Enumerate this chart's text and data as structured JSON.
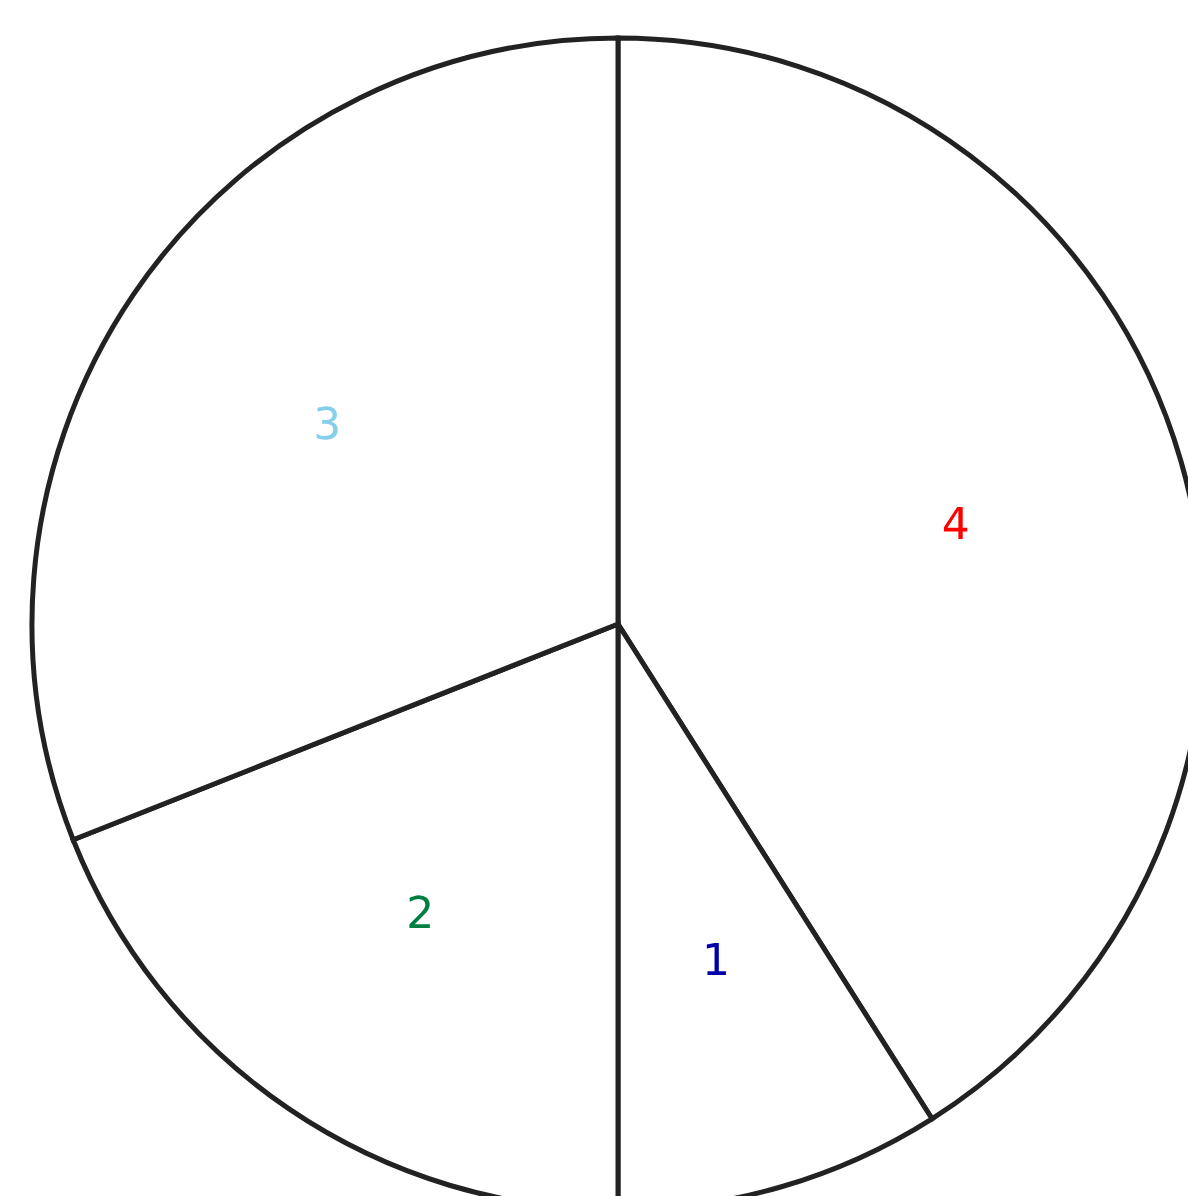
{
  "chart_data": {
    "type": "pie",
    "categories": [
      "4",
      "1",
      "2",
      "3"
    ],
    "values": [
      41,
      9,
      19,
      31
    ],
    "colors": [
      "#ffffff",
      "#ffffff",
      "#ffffff",
      "#ffffff"
    ]
  }
}
